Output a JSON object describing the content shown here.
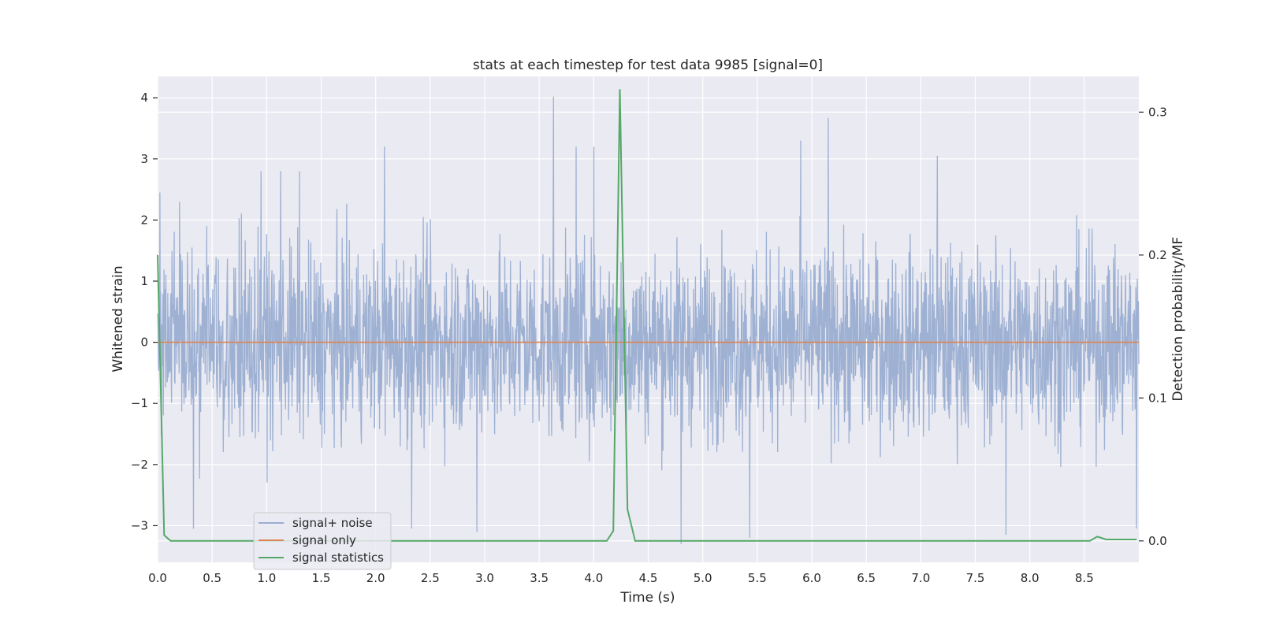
{
  "chart_data": {
    "type": "line",
    "title": "stats at each timestep for test data 9985 [signal=0]",
    "xlabel": "Time (s)",
    "ylabel": "Whitened strain",
    "ylabel_right": "Detection probability/MF",
    "xlim": [
      0.0,
      9.0
    ],
    "ylim": [
      -3.6,
      4.35
    ],
    "ylim_right": [
      -0.015,
      0.325
    ],
    "x_ticks": [
      "0.0",
      "0.5",
      "1.0",
      "1.5",
      "2.0",
      "2.5",
      "3.0",
      "3.5",
      "4.0",
      "4.5",
      "5.0",
      "5.5",
      "6.0",
      "6.5",
      "7.0",
      "7.5",
      "8.0",
      "8.5"
    ],
    "y_ticks": [
      "−3",
      "−2",
      "−1",
      "0",
      "1",
      "2",
      "3",
      "4"
    ],
    "y_right_ticks": [
      "0.0",
      "0.1",
      "0.2",
      "0.3"
    ],
    "grid": true,
    "legend_position": "lower-left",
    "colors": {
      "plot_bg": "#eaeaf2",
      "grid": "#ffffff",
      "noise": "#9aaed1",
      "signal": "#dd8452",
      "stats": "#55a868"
    },
    "series": [
      {
        "name": "signal+ noise",
        "axis": "left",
        "description_values": "dense whitened noise, band approx ±1.5 with spikes",
        "peaks": [
          {
            "x": 0.02,
            "y": 2.45
          },
          {
            "x": 0.2,
            "y": 2.3
          },
          {
            "x": 0.33,
            "y": -3.05
          },
          {
            "x": 0.95,
            "y": 2.8
          },
          {
            "x": 1.13,
            "y": 2.8
          },
          {
            "x": 1.3,
            "y": 2.8
          },
          {
            "x": 2.08,
            "y": 3.2
          },
          {
            "x": 2.33,
            "y": -3.05
          },
          {
            "x": 2.93,
            "y": -3.1
          },
          {
            "x": 3.63,
            "y": 4.02
          },
          {
            "x": 3.84,
            "y": 3.2
          },
          {
            "x": 4.0,
            "y": 3.2
          },
          {
            "x": 4.8,
            "y": -3.3
          },
          {
            "x": 5.43,
            "y": -3.2
          },
          {
            "x": 5.9,
            "y": 3.3
          },
          {
            "x": 6.15,
            "y": 3.67
          },
          {
            "x": 7.15,
            "y": 3.05
          },
          {
            "x": 7.78,
            "y": -3.15
          },
          {
            "x": 8.98,
            "y": -3.05
          }
        ]
      },
      {
        "name": "signal only",
        "axis": "left",
        "x": [
          0.0,
          9.0
        ],
        "values": [
          0.0,
          0.0
        ]
      },
      {
        "name": "signal statistics",
        "axis": "right",
        "x": [
          0.0,
          0.06,
          0.12,
          0.5,
          1.0,
          2.0,
          3.0,
          4.0,
          4.12,
          4.18,
          4.24,
          4.31,
          4.38,
          5.0,
          6.0,
          7.0,
          8.0,
          8.55,
          8.62,
          8.7,
          8.8,
          8.9,
          8.98
        ],
        "values": [
          0.2,
          0.004,
          0.0,
          0.0,
          0.0,
          0.0,
          0.0,
          0.0,
          0.0,
          0.007,
          0.316,
          0.022,
          0.0,
          0.0,
          0.0,
          0.0,
          0.0,
          0.0,
          0.003,
          0.001,
          0.001,
          0.001,
          0.001
        ]
      }
    ]
  }
}
